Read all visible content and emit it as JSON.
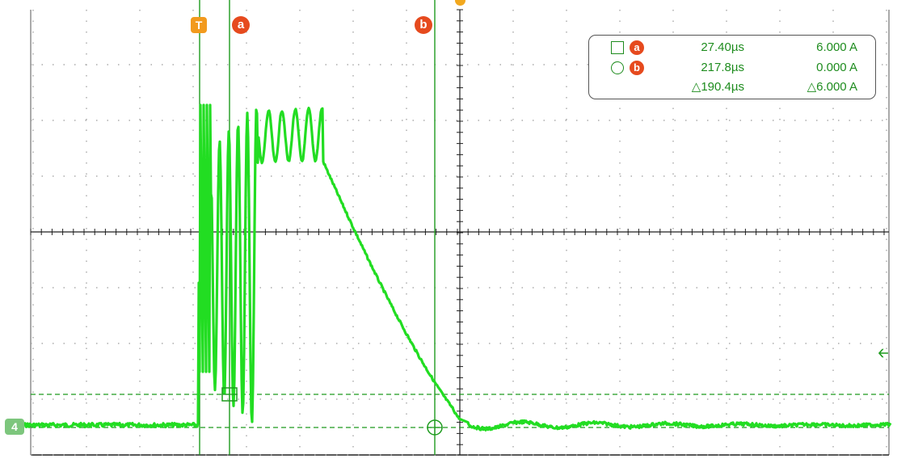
{
  "channel": {
    "number": "4",
    "trace_color": "#22dd22",
    "cursor_color": "#1e9b1e",
    "level_arrow_icon": "left-arrow-icon"
  },
  "markers": {
    "trigger_label": "T",
    "cursor_a_label": "a",
    "cursor_b_label": "b"
  },
  "measurements": {
    "cursor_a": {
      "symbol": "square",
      "time": "27.40µs",
      "value": "6.000 A"
    },
    "cursor_b": {
      "symbol": "circle",
      "time": "217.8µs",
      "value": "0.000 A"
    },
    "delta": {
      "time": "△190.4µs",
      "value": "△6.000 A"
    }
  },
  "colors": {
    "grid": "#9a9a9a",
    "axis": "#202020",
    "badge": "#e64a1e",
    "trigger": "#f29a1e",
    "readout_text": "#1e8c1e"
  }
}
